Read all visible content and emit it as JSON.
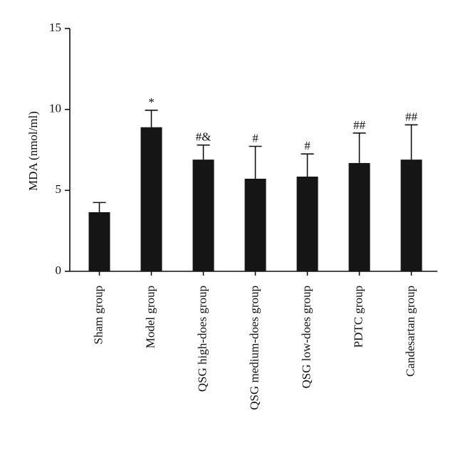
{
  "chart_data": {
    "type": "bar",
    "y_label": "MDA (nmol/ml)",
    "categories": [
      "Sham group",
      "Model group",
      "QSG high-does group",
      "QSG medium-does group",
      "QSG low-does group",
      "PDTC group",
      "Candesartan group"
    ],
    "values": [
      3.65,
      8.9,
      6.9,
      5.72,
      5.85,
      6.69,
      6.9
    ],
    "errors": [
      0.6,
      1.05,
      0.9,
      2.0,
      1.4,
      1.85,
      2.15
    ],
    "annotations": [
      "",
      "*",
      "#&",
      "#",
      "#",
      "##",
      "##"
    ],
    "color": "#151515",
    "ylim": [
      0,
      15
    ],
    "yticks": [
      0,
      5,
      10,
      15
    ]
  }
}
